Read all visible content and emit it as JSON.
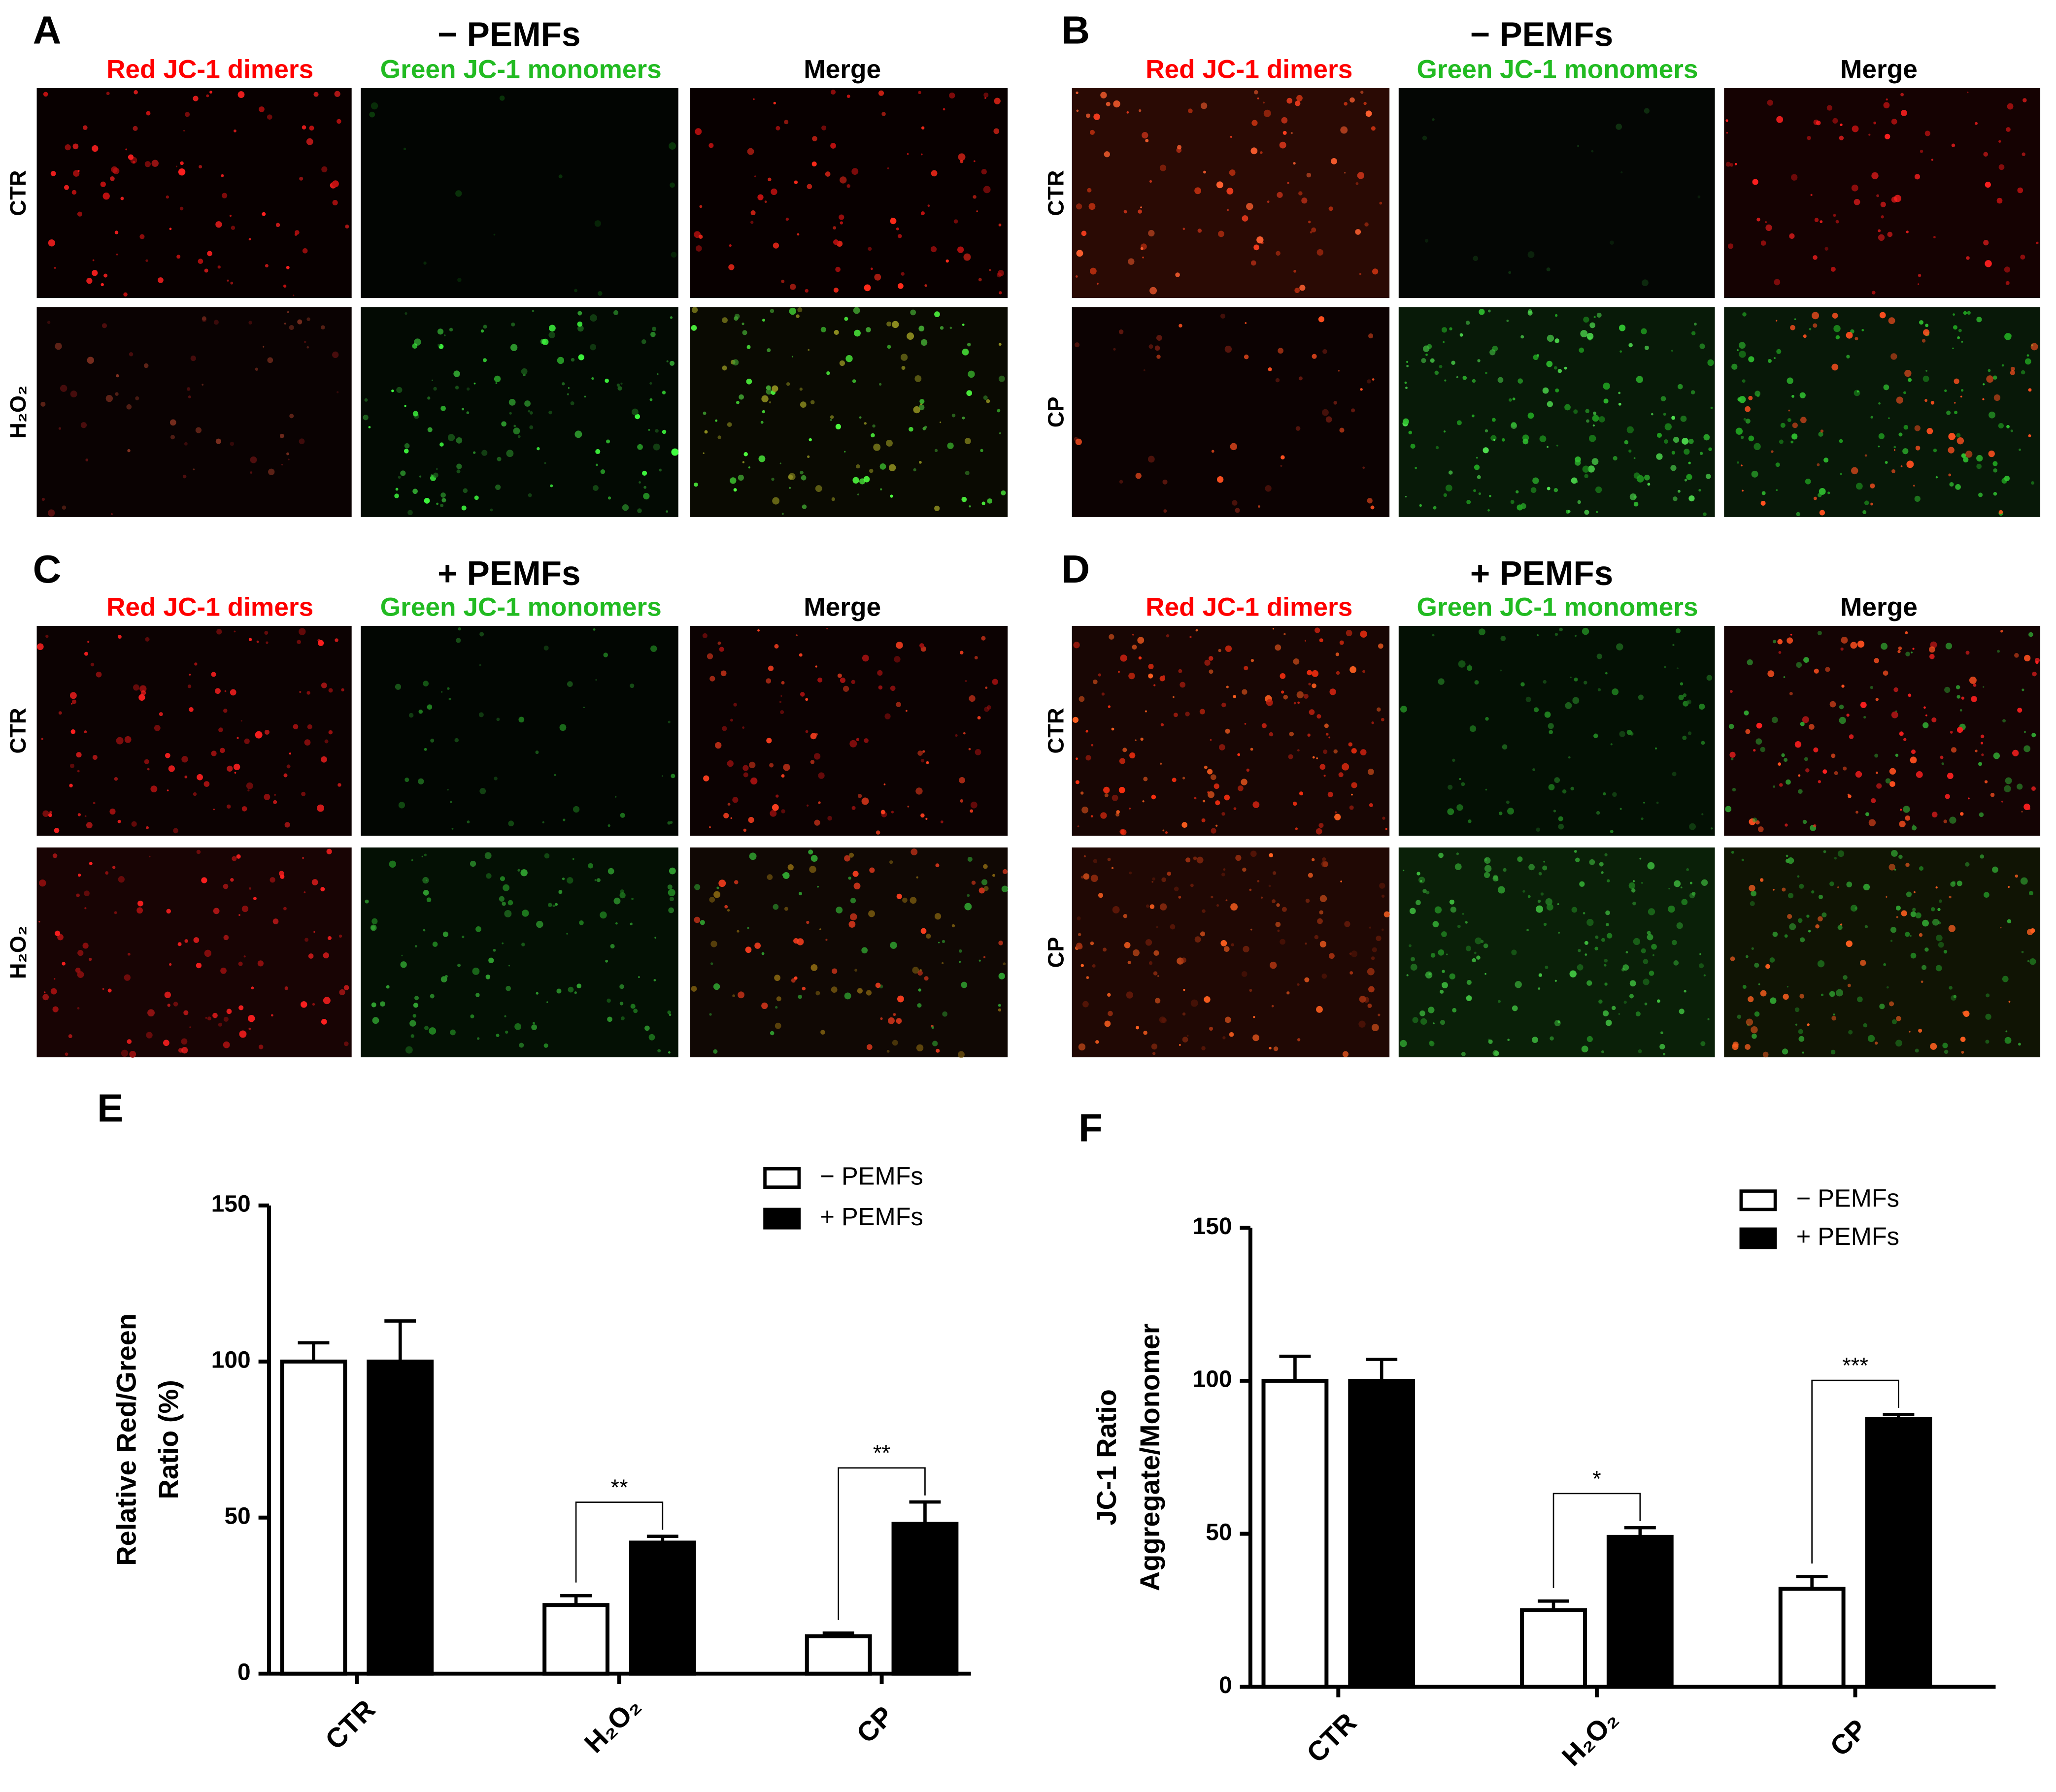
{
  "panels": [
    {
      "label": "A",
      "condition": "− PEMFs",
      "columns": [
        "Red JC-1 dimers",
        "Green JC-1 monomers",
        "Merge"
      ],
      "rows": [
        "CTR",
        "H₂O₂"
      ]
    },
    {
      "label": "B",
      "condition": "− PEMFs",
      "columns": [
        "Red JC-1 dimers",
        "Green JC-1 monomers",
        "Merge"
      ],
      "rows": [
        "CTR",
        "CP"
      ]
    },
    {
      "label": "C",
      "condition": "+ PEMFs",
      "columns": [
        "Red JC-1 dimers",
        "Green JC-1 monomers",
        "Merge"
      ],
      "rows": [
        "CTR",
        "H₂O₂"
      ]
    },
    {
      "label": "D",
      "condition": "+ PEMFs",
      "columns": [
        "Red JC-1 dimers",
        "Green JC-1 monomers",
        "Merge"
      ],
      "rows": [
        "CTR",
        "CP"
      ]
    }
  ],
  "chart_data": [
    {
      "type": "bar",
      "label": "E",
      "y_label": [
        "Relative Red/Green",
        "Ratio (%)"
      ],
      "categories": [
        "CTR",
        "H₂O₂",
        "CP"
      ],
      "series": [
        {
          "name": "− PEMFs",
          "color": "#ffffff",
          "values": [
            100,
            22,
            12
          ],
          "errors": [
            6,
            3,
            1
          ]
        },
        {
          "name": "+ PEMFs",
          "color": "#000000",
          "values": [
            100,
            42,
            48
          ],
          "errors": [
            13,
            2,
            7
          ]
        }
      ],
      "significance": [
        null,
        "**",
        "**"
      ],
      "ylim": [
        0,
        150
      ],
      "yticks": [
        0,
        50,
        100,
        150
      ],
      "legend": "top-right"
    },
    {
      "type": "bar",
      "label": "F",
      "y_label": [
        "JC-1 Ratio",
        "Aggregate/Monomer"
      ],
      "categories": [
        "CTR",
        "H₂O₂",
        "CP"
      ],
      "series": [
        {
          "name": "− PEMFs",
          "color": "#ffffff",
          "values": [
            100,
            25,
            32
          ],
          "errors": [
            8,
            3,
            4
          ]
        },
        {
          "name": "+ PEMFs",
          "color": "#000000",
          "values": [
            100,
            49,
            87.5
          ],
          "errors": [
            7,
            3,
            1.5
          ]
        }
      ],
      "significance": [
        null,
        "*",
        "***"
      ],
      "ylim": [
        0,
        150
      ],
      "yticks": [
        0,
        50,
        100,
        150
      ],
      "legend": "top-right"
    }
  ]
}
